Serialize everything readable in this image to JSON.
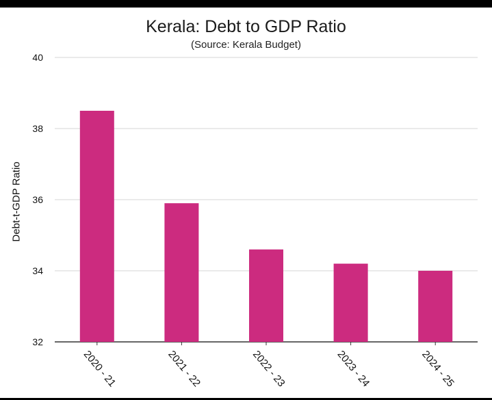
{
  "chart_data": {
    "type": "bar",
    "title": "Kerala: Debt to GDP Ratio",
    "subtitle": "(Source: Kerala Budget)",
    "xlabel": "",
    "ylabel": "Debt-t-GDP Ratio",
    "categories": [
      "2020 - 21",
      "2021 - 22",
      "2022 - 23",
      "2023 - 24",
      "2024 - 25"
    ],
    "values": [
      38.5,
      35.9,
      34.6,
      34.2,
      34.0
    ],
    "ylim": [
      32,
      40
    ],
    "yticks": [
      32,
      34,
      36,
      38,
      40
    ],
    "grid": true,
    "bar_color": "#cc2b7f"
  }
}
